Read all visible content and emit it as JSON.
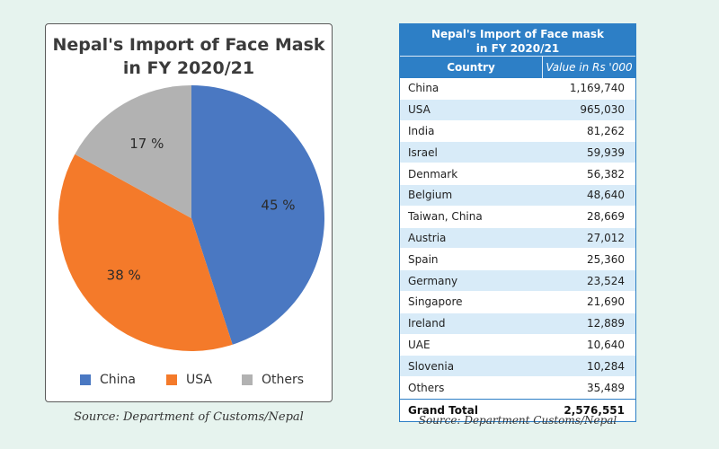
{
  "colors": {
    "china": "#4a78c2",
    "usa": "#f47a2a",
    "others": "#b2b2b2",
    "table_blue": "#2d7fc6",
    "page_bg": "#e6f3ee"
  },
  "chart_data": {
    "type": "pie",
    "title_line1": "Nepal's Import of Face Mask",
    "title_line2": "in FY 2020/21",
    "slices": [
      {
        "name": "China",
        "value": 45,
        "label": "45 %",
        "color": "#4a78c2"
      },
      {
        "name": "USA",
        "value": 38,
        "label": "38 %",
        "color": "#f47a2a"
      },
      {
        "name": "Others",
        "value": 17,
        "label": "17 %",
        "color": "#b2b2b2"
      }
    ],
    "legend": [
      "China",
      "USA",
      "Others"
    ],
    "legend_position": "bottom",
    "source": "Source: Department of Customs/Nepal"
  },
  "table": {
    "title_line1": "Nepal's Import of Face mask",
    "title_line2": "in FY 2020/21",
    "header_country": "Country",
    "header_value": "Value in Rs '000",
    "rows": [
      {
        "country": "China",
        "value": "1,169,740"
      },
      {
        "country": "USA",
        "value": "965,030"
      },
      {
        "country": "India",
        "value": "81,262"
      },
      {
        "country": "Israel",
        "value": "59,939"
      },
      {
        "country": "Denmark",
        "value": "56,382"
      },
      {
        "country": "Belgium",
        "value": "48,640"
      },
      {
        "country": "Taiwan, China",
        "value": "28,669"
      },
      {
        "country": "Austria",
        "value": "27,012"
      },
      {
        "country": "Spain",
        "value": "25,360"
      },
      {
        "country": "Germany",
        "value": "23,524"
      },
      {
        "country": "Singapore",
        "value": "21,690"
      },
      {
        "country": "Ireland",
        "value": "12,889"
      },
      {
        "country": "UAE",
        "value": "10,640"
      },
      {
        "country": "Slovenia",
        "value": "10,284"
      },
      {
        "country": "Others",
        "value": "35,489"
      }
    ],
    "total_label": "Grand Total",
    "total_value": "2,576,551",
    "source": "Source: Department Customs/Nepal"
  }
}
